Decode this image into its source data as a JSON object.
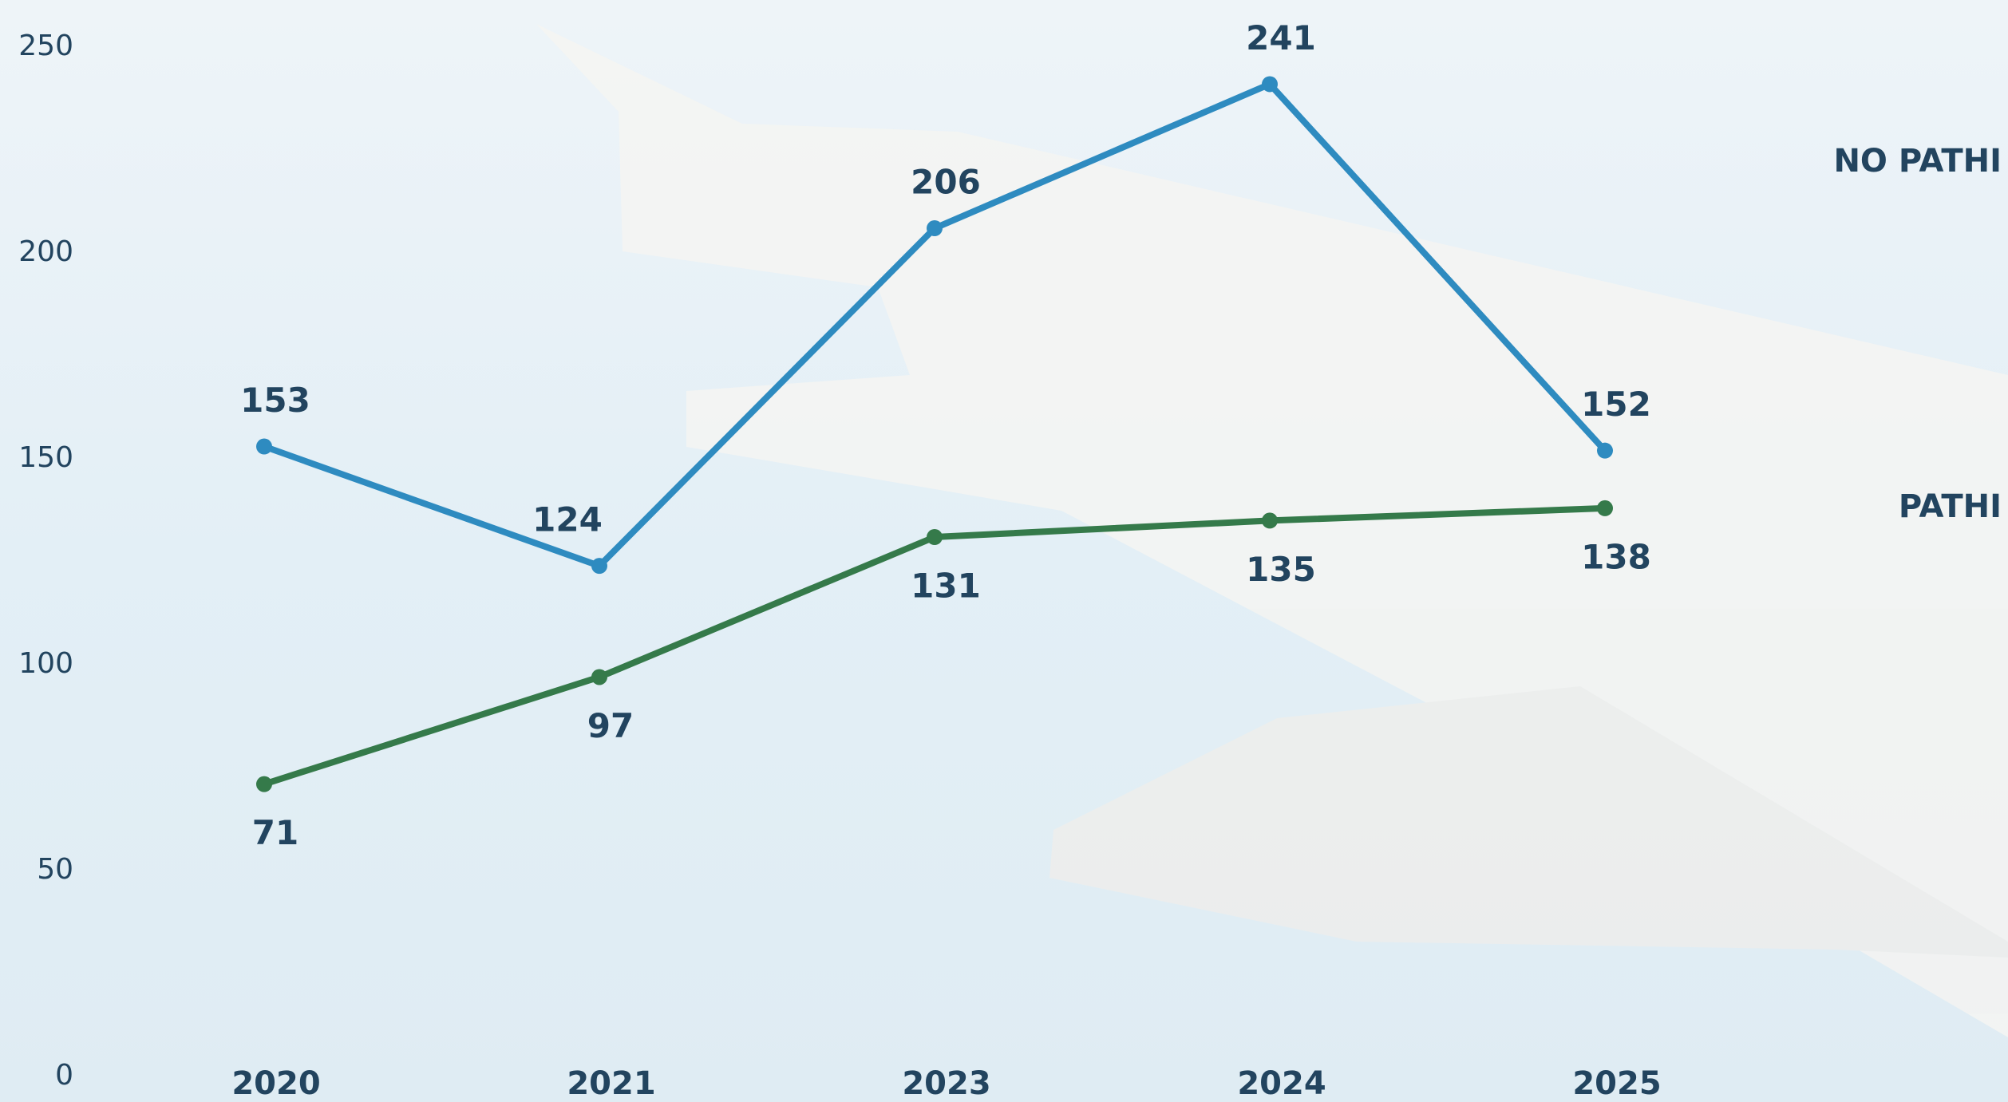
{
  "chart_data": {
    "type": "line",
    "categories": [
      "2020",
      "2021",
      "2023",
      "2024",
      "2025"
    ],
    "series": [
      {
        "name": "NO PATHI",
        "color": "#2e8bc0",
        "values": [
          153,
          124,
          206,
          241,
          152
        ]
      },
      {
        "name": "PATHI",
        "color": "#357a4a",
        "values": [
          71,
          97,
          131,
          135,
          138
        ]
      }
    ],
    "ylim": [
      0,
      250
    ],
    "yticks": [
      0,
      50,
      100,
      150,
      200,
      250
    ],
    "grid": false
  }
}
